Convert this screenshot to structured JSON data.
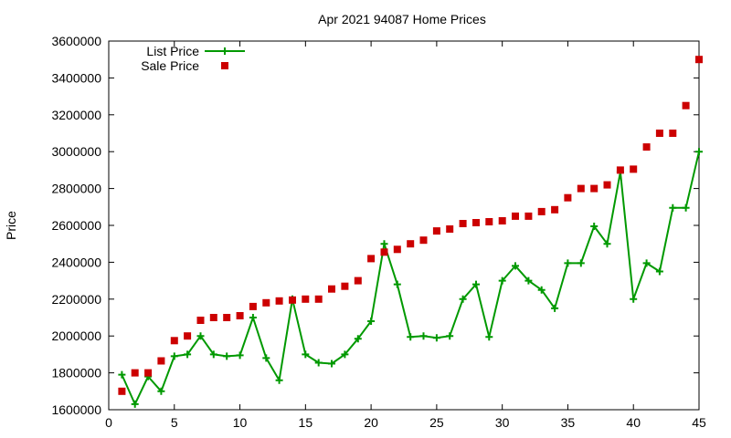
{
  "chart_data": {
    "type": "line",
    "title": "Apr 2021 94087 Home Prices",
    "xlabel": "",
    "ylabel": "Price",
    "xlim": [
      0,
      45
    ],
    "ylim": [
      1600000,
      3600000
    ],
    "xticks": [
      0,
      5,
      10,
      15,
      20,
      25,
      30,
      35,
      40,
      45
    ],
    "yticks": [
      1600000,
      1800000,
      2000000,
      2200000,
      2400000,
      2600000,
      2800000,
      3000000,
      3200000,
      3400000,
      3600000
    ],
    "grid": false,
    "legend_position": "top-left",
    "series": [
      {
        "name": "List Price",
        "style": "linespoints",
        "color": "#009900",
        "x": [
          1,
          2,
          3,
          4,
          5,
          6,
          7,
          8,
          9,
          10,
          11,
          12,
          13,
          14,
          15,
          16,
          17,
          18,
          19,
          20,
          21,
          22,
          23,
          24,
          25,
          26,
          27,
          28,
          29,
          30,
          31,
          32,
          33,
          34,
          35,
          36,
          37,
          38,
          39,
          40,
          41,
          42,
          43,
          44,
          45
        ],
        "values": [
          1790000,
          1630000,
          1780000,
          1700000,
          1890000,
          1900000,
          2000000,
          1900000,
          1890000,
          1895000,
          2100000,
          1880000,
          1760000,
          2200000,
          1900000,
          1855000,
          1850000,
          1900000,
          1985000,
          2080000,
          2500000,
          2280000,
          1995000,
          2000000,
          1990000,
          2000000,
          2200000,
          2280000,
          1995000,
          2300000,
          2380000,
          2300000,
          2250000,
          2150000,
          2395000,
          2395000,
          2595000,
          2500000,
          2890000,
          2200000,
          2395000,
          2350000,
          2695000,
          2695000,
          3000000
        ]
      },
      {
        "name": "Sale Price",
        "style": "points",
        "color": "#cc0000",
        "x": [
          1,
          2,
          3,
          4,
          5,
          6,
          7,
          8,
          9,
          10,
          11,
          12,
          13,
          14,
          15,
          16,
          17,
          18,
          19,
          20,
          21,
          22,
          23,
          24,
          25,
          26,
          27,
          28,
          29,
          30,
          31,
          32,
          33,
          34,
          35,
          36,
          37,
          38,
          39,
          40,
          41,
          42,
          43,
          44,
          45
        ],
        "values": [
          1700000,
          1800000,
          1800000,
          1865000,
          1975000,
          2000000,
          2085000,
          2100000,
          2100000,
          2110000,
          2160000,
          2180000,
          2190000,
          2195000,
          2200000,
          2200000,
          2255000,
          2270000,
          2300000,
          2420000,
          2455000,
          2470000,
          2500000,
          2520000,
          2570000,
          2580000,
          2610000,
          2615000,
          2620000,
          2625000,
          2650000,
          2650000,
          2675000,
          2685000,
          2750000,
          2800000,
          2800000,
          2820000,
          2900000,
          2905000,
          3025000,
          3100000,
          3100000,
          3250000,
          3500000
        ]
      }
    ]
  }
}
